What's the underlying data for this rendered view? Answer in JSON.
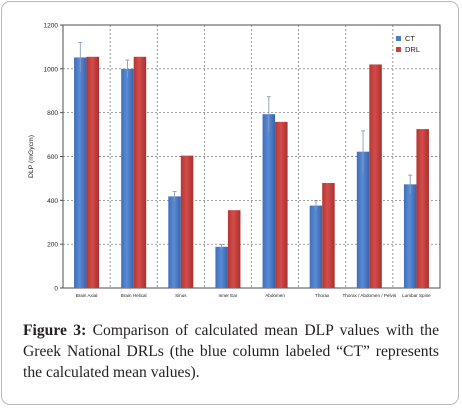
{
  "chart_data": {
    "type": "bar",
    "ylabel": "DLP (mGycm)",
    "xlabel": "",
    "ylim": [
      0,
      1200
    ],
    "yticks": [
      0,
      200,
      400,
      600,
      800,
      1000,
      1200
    ],
    "grid": true,
    "legend_position": "top-right",
    "categories": [
      "Brain Axial",
      "Brain Helical",
      "Sinus",
      "Inner Ear",
      "Abdomen",
      "Thorax",
      "Thorax / Abdomen / Pelvis",
      "Lumbar Spine"
    ],
    "series": [
      {
        "name": "CT",
        "color": "#4a7cc7",
        "values": [
          1052,
          1000,
          418,
          188,
          793,
          376,
          622,
          473
        ],
        "errors": [
          68,
          40,
          22,
          10,
          80,
          22,
          95,
          42
        ]
      },
      {
        "name": "DRL",
        "color": "#c8413f",
        "values": [
          1055,
          1055,
          604,
          355,
          758,
          479,
          1020,
          725
        ]
      }
    ]
  },
  "caption": {
    "label": "Figure 3:",
    "text": " Comparison of calculated mean DLP values with the Greek National DRLs (the blue column labeled “CT” represents the calculated mean values)."
  }
}
